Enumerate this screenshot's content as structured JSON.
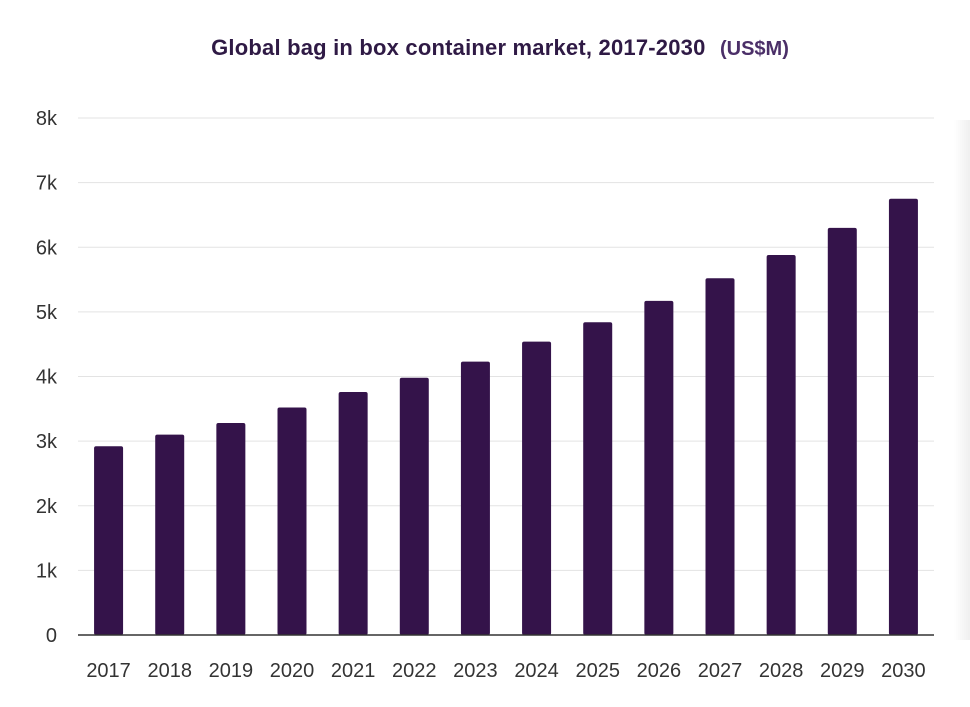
{
  "chart_data": {
    "type": "bar",
    "title": "Global bag in box container market, 2017-2030",
    "unit_label": "(US$M)",
    "categories": [
      "2017",
      "2018",
      "2019",
      "2020",
      "2021",
      "2022",
      "2023",
      "2024",
      "2025",
      "2026",
      "2027",
      "2028",
      "2029",
      "2030"
    ],
    "values": [
      2920,
      3100,
      3280,
      3520,
      3760,
      3980,
      4230,
      4540,
      4840,
      5170,
      5520,
      5880,
      6300,
      6750
    ],
    "y_ticks": [
      "0",
      "1k",
      "2k",
      "3k",
      "4k",
      "5k",
      "6k",
      "7k",
      "8k"
    ],
    "ylim": [
      0,
      8000
    ],
    "xlabel": "",
    "ylabel": "",
    "grid": true,
    "legend": "none",
    "bar_color": "#34134a"
  }
}
